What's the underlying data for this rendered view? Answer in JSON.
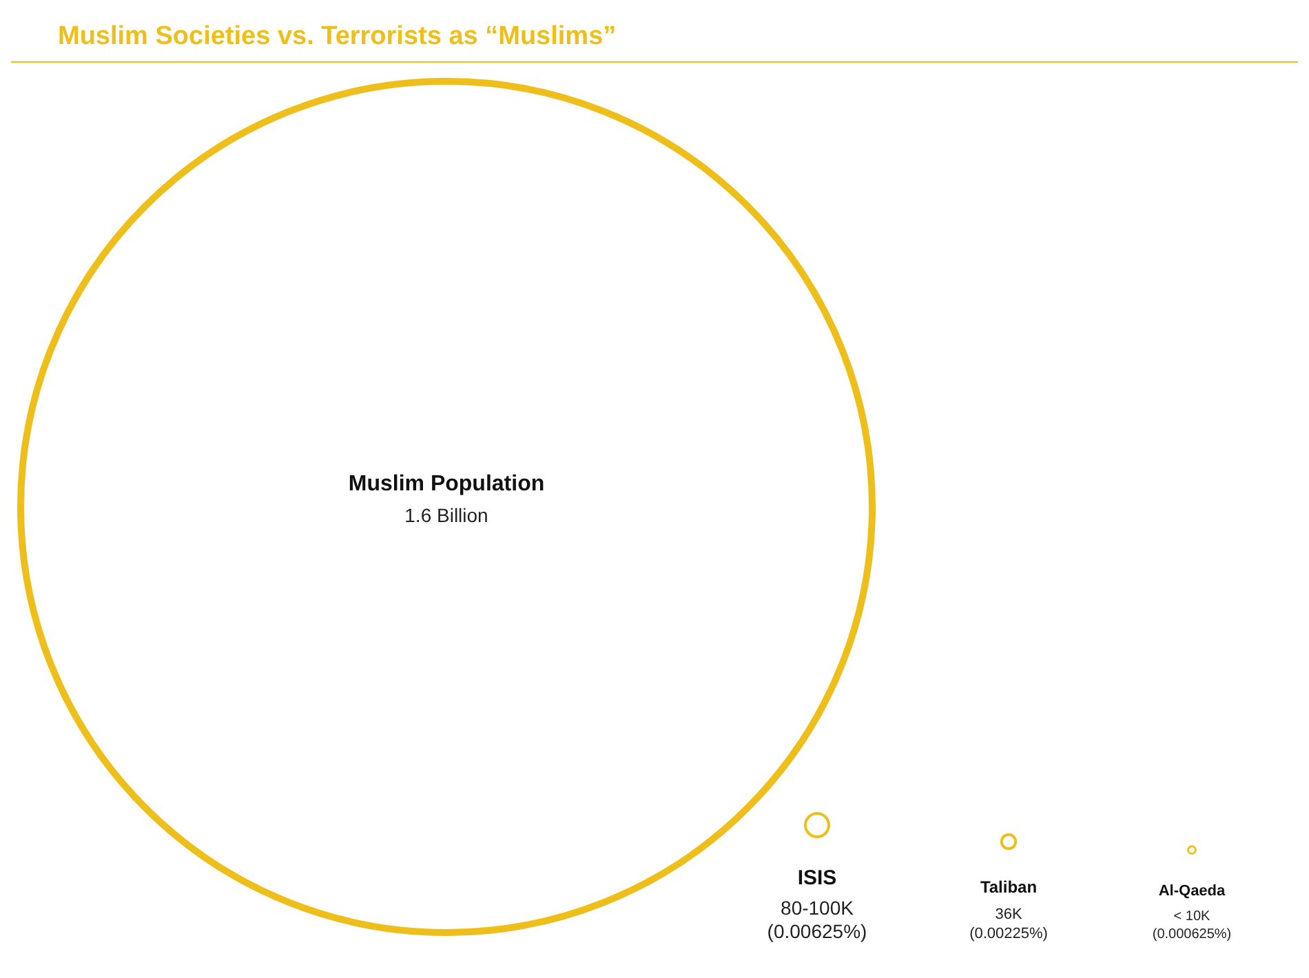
{
  "chart_data": {
    "type": "other",
    "title": "Muslim Societies vs. Terrorists as “Muslims”",
    "categories": [
      "Muslim Population",
      "ISIS",
      "Taliban",
      "Al-Qaeda"
    ],
    "color": "#eebf1b",
    "values": [
      null,
      0.00625,
      0.00225,
      0.000625
    ],
    "value_labels": [
      null,
      "(0.00625%)",
      "(0.00225%)",
      "(0.000625%)"
    ],
    "annotations": [
      {
        "text": "1.6 Billion",
        "x": "Muslim Population"
      },
      {
        "text": "80-100K",
        "x": "ISIS"
      },
      {
        "text": "36K",
        "x": "Taliban"
      },
      {
        "text": "< 10K",
        "x": "Al-Qaeda"
      }
    ]
  }
}
